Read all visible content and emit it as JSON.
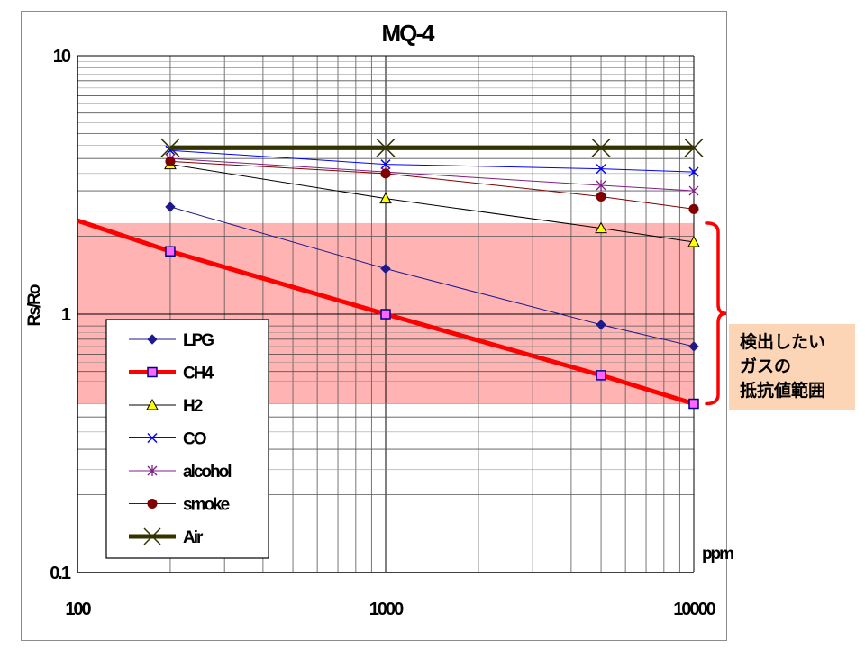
{
  "chart_data": {
    "type": "line",
    "title": "MQ-4",
    "xlabel": "ppm",
    "ylabel": "Rs/Ro",
    "x_scale": "log",
    "y_scale": "log",
    "xlim": [
      100,
      10000
    ],
    "ylim": [
      0.1,
      10
    ],
    "x_ticks": [
      "100",
      "1000",
      "10000"
    ],
    "y_ticks": [
      "0.1",
      "1",
      "10"
    ],
    "grid": true,
    "legend_position": "lower-left",
    "series": [
      {
        "name": "LPG",
        "color": "#1f1a8c",
        "marker": "diamond",
        "line_width": 1,
        "x": [
          200,
          1000,
          5000,
          10000
        ],
        "y": [
          2.6,
          1.5,
          0.91,
          0.75
        ]
      },
      {
        "name": "CH4",
        "color": "#ff0000",
        "marker": "square",
        "line_width": 5,
        "marker_fill": "#ff66ff",
        "marker_stroke": "#000080",
        "x": [
          100,
          200,
          1000,
          5000,
          10000
        ],
        "y": [
          2.3,
          1.75,
          1.0,
          0.58,
          0.45
        ]
      },
      {
        "name": "H2",
        "color": "#000000",
        "marker": "triangle",
        "line_width": 1,
        "marker_fill": "#ffff00",
        "x": [
          200,
          1000,
          5000,
          10000
        ],
        "y": [
          3.8,
          2.8,
          2.15,
          1.9
        ]
      },
      {
        "name": "CO",
        "color": "#0000ff",
        "marker": "x",
        "line_width": 1,
        "x": [
          200,
          1000,
          5000,
          10000
        ],
        "y": [
          4.3,
          3.8,
          3.65,
          3.55
        ]
      },
      {
        "name": "alcohol",
        "color": "#7f1e86",
        "marker": "asterisk",
        "line_width": 1,
        "x": [
          200,
          1000,
          5000,
          10000
        ],
        "y": [
          4.0,
          3.55,
          3.15,
          3.0
        ]
      },
      {
        "name": "smoke",
        "color": "#7f0000",
        "marker": "circle",
        "line_width": 1,
        "x": [
          200,
          1000,
          5000,
          10000
        ],
        "y": [
          3.9,
          3.5,
          2.85,
          2.55
        ]
      },
      {
        "name": "Air",
        "color": "#333300",
        "marker": "x",
        "line_width": 5,
        "x": [
          200,
          1000,
          5000,
          10000
        ],
        "y": [
          4.4,
          4.4,
          4.4,
          4.4
        ]
      }
    ],
    "highlight_band": {
      "color": "#ffb3b3",
      "y_range": [
        0.45,
        2.25
      ]
    },
    "annotation": {
      "lines": [
        "検出したい",
        "ガスの",
        "抵抗値範囲"
      ],
      "bracket_color": "#ff0000",
      "bracket_y_range": [
        0.45,
        2.25
      ],
      "background": "#fbd5b5"
    }
  }
}
